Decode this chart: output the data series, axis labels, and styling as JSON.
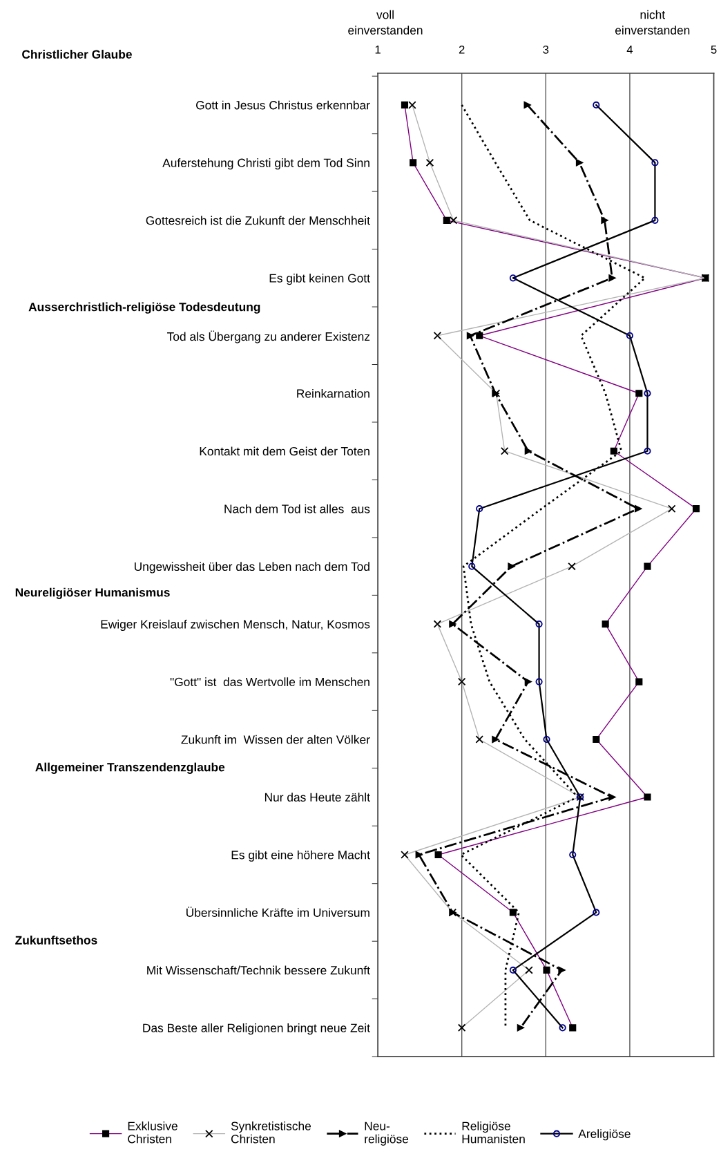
{
  "chart_data": {
    "type": "line",
    "orientation": "horizontal",
    "categories": [
      "Gott in Jesus Christus erkennbar",
      "Auferstehung Christi gibt dem Tod Sinn",
      "Gottesreich ist die Zukunft der Menschheit",
      "Es gibt keinen Gott",
      "Tod als Übergang zu anderer Existenz",
      "Reinkarnation",
      "Kontakt mit dem Geist der Toten",
      "Nach dem Tod ist alles  aus",
      "Ungewissheit über das Leben nach dem Tod",
      "Ewiger Kreislauf zwischen Mensch, Natur, Kosmos",
      "\"Gott\" ist  das Wertvolle im Menschen",
      "Zukunft im  Wissen der alten Völker",
      "Nur das Heute zählt",
      "Es gibt eine höhere Macht",
      "Übersinnliche Kräfte im Universum",
      "Mit Wissenschaft/Technik bessere Zukunft",
      "Das Beste aller Religionen bringt neue Zeit"
    ],
    "xlim": [
      1,
      5
    ],
    "xticks": [
      1,
      2,
      3,
      4,
      5
    ],
    "grid": "x",
    "legend": "bottom",
    "annotations": [
      "Christlicher Glaube",
      "Ausserchristlich-religiöse Todesdeutung",
      "Neureligiöser Humanismus",
      "Allgemeiner Transzendenzglaube",
      "Zukunftsethos",
      "voll\neinverstanden",
      "nicht\neinverstanden"
    ],
    "series": [
      {
        "name": "Exklusive\nChristen",
        "color": "#800080",
        "marker": "square",
        "line_style": "solid",
        "values": [
          1.32,
          1.42,
          1.82,
          4.9,
          2.21,
          4.11,
          3.81,
          4.79,
          4.21,
          3.71,
          4.11,
          3.6,
          4.21,
          1.72,
          2.61,
          3.01,
          3.32
        ]
      },
      {
        "name": "Synkretistische\nChristen",
        "color": "#b4b4b4",
        "marker": "cross",
        "line_style": "solid",
        "values": [
          1.41,
          1.62,
          1.9,
          4.9,
          1.71,
          2.41,
          2.51,
          4.5,
          3.31,
          1.71,
          2.0,
          2.21,
          3.41,
          1.32,
          1.89,
          2.8,
          2.0
        ]
      },
      {
        "name": "Neu-\nreligiöse",
        "color": "#000000",
        "marker": "triangle",
        "line_style": "dashdot",
        "values": [
          2.78,
          3.4,
          3.7,
          3.79,
          2.1,
          2.4,
          2.79,
          4.1,
          2.59,
          1.89,
          2.79,
          2.4,
          3.79,
          1.49,
          1.89,
          3.19,
          2.7
        ]
      },
      {
        "name": "Religiöse\nHumanisten",
        "color": "#000000",
        "marker": "none",
        "line_style": "dotted",
        "values": [
          2.0,
          2.4,
          2.81,
          4.18,
          3.42,
          3.71,
          3.9,
          2.95,
          2.02,
          2.11,
          2.33,
          2.75,
          3.38,
          1.99,
          2.68,
          2.52,
          2.52
        ]
      },
      {
        "name": "Areligiöse",
        "color": "#000000",
        "marker": "circle",
        "line_style": "solid",
        "values": [
          3.6,
          4.3,
          4.3,
          2.61,
          4.0,
          4.21,
          4.21,
          2.21,
          2.12,
          2.92,
          2.92,
          3.01,
          3.41,
          3.32,
          3.6,
          2.61,
          3.2
        ]
      }
    ]
  }
}
